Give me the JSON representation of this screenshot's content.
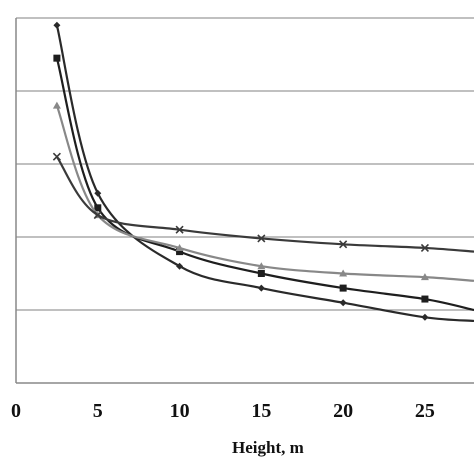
{
  "chart_data": {
    "type": "line",
    "title": "",
    "xlabel": "Height, m",
    "ylabel": "",
    "xlim": [
      0,
      28
    ],
    "ylim": [
      0,
      5
    ],
    "x_ticks": [
      "0",
      "5",
      "10",
      "15",
      "20",
      "25"
    ],
    "grid": "horizontal",
    "series": [
      {
        "marker": "diamond",
        "color": "#2a2a2a",
        "x": [
          2.5,
          5,
          10,
          15,
          20,
          25,
          28
        ],
        "y": [
          4.9,
          2.6,
          1.6,
          1.3,
          1.1,
          0.9,
          0.85
        ]
      },
      {
        "marker": "square",
        "color": "#1e1e1e",
        "x": [
          2.5,
          5,
          10,
          15,
          20,
          25,
          28
        ],
        "y": [
          4.45,
          2.4,
          1.8,
          1.5,
          1.3,
          1.15,
          1.0
        ]
      },
      {
        "marker": "triangle",
        "color": "#888888",
        "x": [
          2.5,
          5,
          10,
          15,
          20,
          25,
          28
        ],
        "y": [
          3.8,
          2.3,
          1.85,
          1.6,
          1.5,
          1.45,
          1.4
        ]
      },
      {
        "marker": "x",
        "color": "#3a3a3a",
        "x": [
          2.5,
          5,
          10,
          15,
          20,
          25,
          28
        ],
        "y": [
          3.1,
          2.3,
          2.1,
          1.98,
          1.9,
          1.85,
          1.8
        ]
      }
    ]
  }
}
